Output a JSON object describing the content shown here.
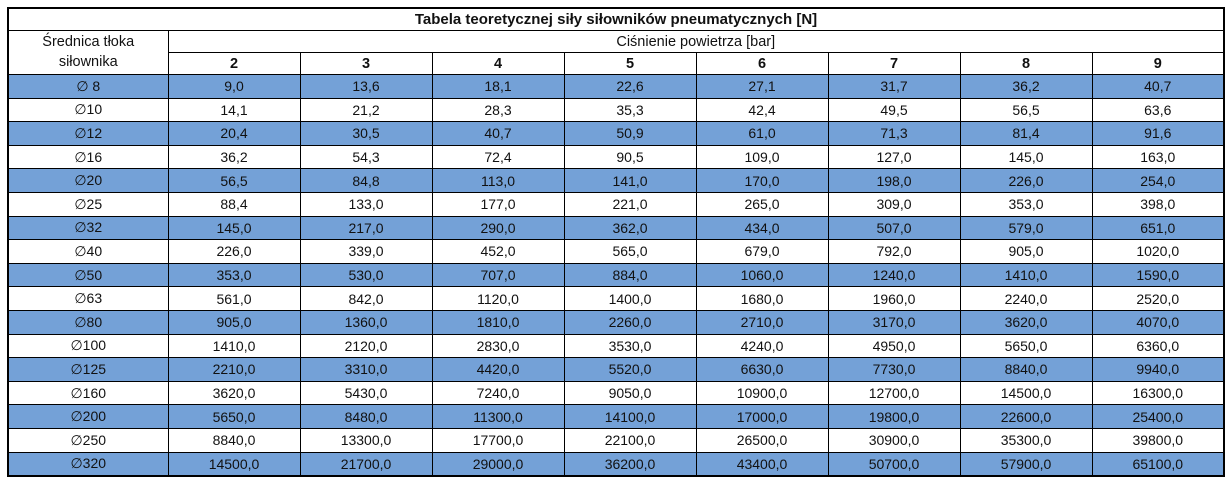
{
  "table": {
    "title": "Tabela teoretycznej siły siłowników pneumatycznych [N]",
    "row_header": "Średnica tłoka siłownika",
    "col_group_header": "Ciśnienie powietrza [bar]",
    "pressures": [
      "2",
      "3",
      "4",
      "5",
      "6",
      "7",
      "8",
      "9"
    ],
    "rows": [
      {
        "label": "∅ 8",
        "values": [
          "9,0",
          "13,6",
          "18,1",
          "22,6",
          "27,1",
          "31,7",
          "36,2",
          "40,7"
        ]
      },
      {
        "label": "∅10",
        "values": [
          "14,1",
          "21,2",
          "28,3",
          "35,3",
          "42,4",
          "49,5",
          "56,5",
          "63,6"
        ]
      },
      {
        "label": "∅12",
        "values": [
          "20,4",
          "30,5",
          "40,7",
          "50,9",
          "61,0",
          "71,3",
          "81,4",
          "91,6"
        ]
      },
      {
        "label": "∅16",
        "values": [
          "36,2",
          "54,3",
          "72,4",
          "90,5",
          "109,0",
          "127,0",
          "145,0",
          "163,0"
        ]
      },
      {
        "label": "∅20",
        "values": [
          "56,5",
          "84,8",
          "113,0",
          "141,0",
          "170,0",
          "198,0",
          "226,0",
          "254,0"
        ]
      },
      {
        "label": "∅25",
        "values": [
          "88,4",
          "133,0",
          "177,0",
          "221,0",
          "265,0",
          "309,0",
          "353,0",
          "398,0"
        ]
      },
      {
        "label": "∅32",
        "values": [
          "145,0",
          "217,0",
          "290,0",
          "362,0",
          "434,0",
          "507,0",
          "579,0",
          "651,0"
        ]
      },
      {
        "label": "∅40",
        "values": [
          "226,0",
          "339,0",
          "452,0",
          "565,0",
          "679,0",
          "792,0",
          "905,0",
          "1020,0"
        ]
      },
      {
        "label": "∅50",
        "values": [
          "353,0",
          "530,0",
          "707,0",
          "884,0",
          "1060,0",
          "1240,0",
          "1410,0",
          "1590,0"
        ]
      },
      {
        "label": "∅63",
        "values": [
          "561,0",
          "842,0",
          "1120,0",
          "1400,0",
          "1680,0",
          "1960,0",
          "2240,0",
          "2520,0"
        ]
      },
      {
        "label": "∅80",
        "values": [
          "905,0",
          "1360,0",
          "1810,0",
          "2260,0",
          "2710,0",
          "3170,0",
          "3620,0",
          "4070,0"
        ]
      },
      {
        "label": "∅100",
        "values": [
          "1410,0",
          "2120,0",
          "2830,0",
          "3530,0",
          "4240,0",
          "4950,0",
          "5650,0",
          "6360,0"
        ]
      },
      {
        "label": "∅125",
        "values": [
          "2210,0",
          "3310,0",
          "4420,0",
          "5520,0",
          "6630,0",
          "7730,0",
          "8840,0",
          "9940,0"
        ]
      },
      {
        "label": "∅160",
        "values": [
          "3620,0",
          "5430,0",
          "7240,0",
          "9050,0",
          "10900,0",
          "12700,0",
          "14500,0",
          "16300,0"
        ]
      },
      {
        "label": "∅200",
        "values": [
          "5650,0",
          "8480,0",
          "11300,0",
          "14100,0",
          "17000,0",
          "19800,0",
          "22600,0",
          "25400,0"
        ]
      },
      {
        "label": "∅250",
        "values": [
          "8840,0",
          "13300,0",
          "17700,0",
          "22100,0",
          "26500,0",
          "30900,0",
          "35300,0",
          "39800,0"
        ]
      },
      {
        "label": "∅320",
        "values": [
          "14500,0",
          "21700,0",
          "29000,0",
          "36200,0",
          "43400,0",
          "50700,0",
          "57900,0",
          "65100,0"
        ]
      }
    ],
    "colors": {
      "row_highlight": "#74A1D7",
      "row_plain": "#FFFFFF",
      "border": "#000000"
    }
  }
}
